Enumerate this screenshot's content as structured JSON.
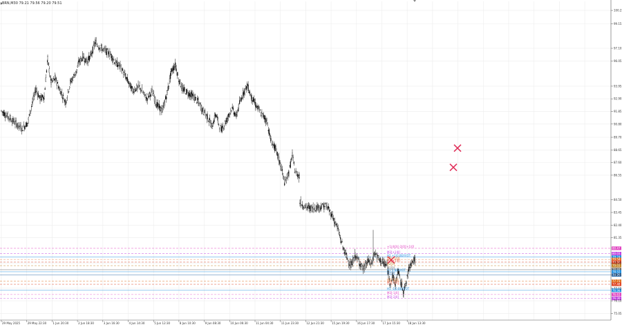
{
  "header": {
    "symbol_line": "BRN,M30  79.21 79.56 79.20 79.51"
  },
  "chart_data": {
    "type": "candlestick",
    "title": "",
    "xlabel": "",
    "ylabel": "",
    "ylim": [
      74.5,
      101.0
    ],
    "grid": true,
    "y_ticks": [
      "100.25",
      "99.15",
      "97.10",
      "96.05",
      "93.95",
      "92.90",
      "91.85",
      "90.80",
      "89.70",
      "88.65",
      "87.60",
      "86.55",
      "84.50",
      "83.45",
      "82.40",
      "81.35",
      "79.25",
      "78.25",
      "77.15",
      "76.10",
      "75.05"
    ],
    "x_ticks": [
      "29 May 2025",
      "29 May 22:30",
      "1 Jun 20:30",
      "2 Jun 18:30",
      "3 Jun 16:30",
      "4 Jun 14:30",
      "5 Jun 12:30",
      "8 Jun 10:30",
      "9 Jun 08:30",
      "10 Jun 06:30",
      "11 Jun 04:30",
      "11 Jun 23:30",
      "12 Jun 21:30",
      "15 Jun 19:30",
      "16 Jun 17:30",
      "17 Jun 15:30",
      "18 Jun 13:30"
    ],
    "price_path": [
      [
        0,
        91.9
      ],
      [
        10,
        91.4
      ],
      [
        20,
        90.9
      ],
      [
        30,
        90.4
      ],
      [
        38,
        90.9
      ],
      [
        45,
        92.6
      ],
      [
        50,
        93.7
      ],
      [
        56,
        92.9
      ],
      [
        62,
        93.1
      ],
      [
        67,
        96.2
      ],
      [
        72,
        94.2
      ],
      [
        78,
        94.6
      ],
      [
        85,
        93.6
      ],
      [
        93,
        92.6
      ],
      [
        100,
        94.3
      ],
      [
        108,
        95.1
      ],
      [
        112,
        95.9
      ],
      [
        118,
        96.4
      ],
      [
        124,
        96.0
      ],
      [
        130,
        96.6
      ],
      [
        136,
        97.6
      ],
      [
        142,
        97.2
      ],
      [
        150,
        96.9
      ],
      [
        158,
        96.6
      ],
      [
        165,
        95.9
      ],
      [
        172,
        95.6
      ],
      [
        180,
        94.7
      ],
      [
        190,
        93.6
      ],
      [
        200,
        93.9
      ],
      [
        210,
        92.9
      ],
      [
        218,
        93.5
      ],
      [
        225,
        92.4
      ],
      [
        233,
        91.9
      ],
      [
        240,
        93.4
      ],
      [
        246,
        95.2
      ],
      [
        252,
        95.7
      ],
      [
        257,
        94.4
      ],
      [
        262,
        93.7
      ],
      [
        270,
        93.4
      ],
      [
        278,
        93.1
      ],
      [
        285,
        92.6
      ],
      [
        292,
        91.9
      ],
      [
        298,
        91.4
      ],
      [
        305,
        90.6
      ],
      [
        310,
        91.6
      ],
      [
        318,
        90.3
      ],
      [
        325,
        91.0
      ],
      [
        333,
        92.1
      ],
      [
        340,
        91.5
      ],
      [
        345,
        92.6
      ],
      [
        350,
        93.4
      ],
      [
        356,
        94.0
      ],
      [
        362,
        93.0
      ],
      [
        370,
        92.2
      ],
      [
        377,
        91.6
      ],
      [
        384,
        91.1
      ],
      [
        390,
        89.4
      ],
      [
        397,
        88.7
      ],
      [
        404,
        87.4
      ],
      [
        410,
        85.9
      ],
      [
        416,
        86.8
      ],
      [
        421,
        88.2
      ],
      [
        425,
        86.8
      ],
      [
        431,
        86.5
      ],
      [
        432,
        84.3
      ],
      [
        440,
        83.9
      ],
      [
        450,
        83.8
      ],
      [
        460,
        83.9
      ],
      [
        470,
        84.0
      ],
      [
        478,
        83.3
      ],
      [
        486,
        82.2
      ],
      [
        494,
        80.6
      ],
      [
        500,
        79.7
      ],
      [
        506,
        79.0
      ],
      [
        512,
        79.9
      ],
      [
        518,
        79.3
      ],
      [
        524,
        78.7
      ],
      [
        530,
        79.4
      ],
      [
        536,
        79.2
      ],
      [
        540,
        80.1
      ],
      [
        546,
        79.6
      ],
      [
        552,
        79.3
      ],
      [
        558,
        79.0
      ],
      [
        562,
        77.6
      ],
      [
        566,
        78.2
      ],
      [
        570,
        77.5
      ],
      [
        574,
        78.6
      ],
      [
        578,
        77.6
      ],
      [
        582,
        76.9
      ],
      [
        586,
        77.6
      ],
      [
        590,
        78.9
      ],
      [
        594,
        79.4
      ],
      [
        599,
        79.5
      ]
    ],
    "levels": [
      {
        "label": "+1(4|0)[-2|0][+1|0]",
        "price": "80.47",
        "color": "#e040c0",
        "style": "dash"
      },
      {
        "label": "M2[+1|0]",
        "price": "80.03",
        "color": "#c040e0",
        "style": "dash"
      },
      {
        "label": "H2 +1|0.BEXVOT",
        "price": "79.74",
        "color": "#2090e0",
        "style": "solid"
      },
      {
        "label": "H2[+1|0]",
        "price": "79.54",
        "color": "#e07020",
        "style": "dash"
      },
      {
        "label": "M2[+1|0]",
        "price": "79.32",
        "color": "#e04020",
        "style": "dash"
      },
      {
        "label": "H2[0]",
        "price": "79.03",
        "color": "#c08020",
        "style": "dash"
      },
      {
        "label": "D1[0]",
        "price": "78.69",
        "color": "#606060",
        "style": "solid"
      },
      {
        "label": "H1 0.BEXVOT",
        "price": "78.52",
        "color": "#2090e0",
        "style": "solid"
      },
      {
        "label": "H2[0]",
        "price": "78.26",
        "color": "#3070b0",
        "style": "solid"
      },
      {
        "label": "H2[-1|0]",
        "price": "77.73",
        "color": "#e07020",
        "style": "dash"
      },
      {
        "label": "M2[-1|0]",
        "price": "77.48",
        "color": "#e04020",
        "style": "dash"
      },
      {
        "label": "H1 -1|0.BEXVOT",
        "price": "76.98",
        "color": "#2090e0",
        "style": "solid"
      },
      {
        "label": "M2[-1|0]",
        "price": "76.63",
        "color": "#e040c0",
        "style": "dash"
      },
      {
        "label": "M2[-2|0]",
        "price": "76.30",
        "color": "#c040e0",
        "style": "dash"
      }
    ],
    "markers": [
      {
        "type": "cross",
        "color": "#e0305a",
        "x_offset": 662,
        "price": 88.8
      },
      {
        "type": "cross",
        "color": "#e0305a",
        "x_offset": 656,
        "price": 87.2
      },
      {
        "type": "cross",
        "color": "#e0305a",
        "x_offset": 566,
        "price": 79.5
      }
    ]
  }
}
